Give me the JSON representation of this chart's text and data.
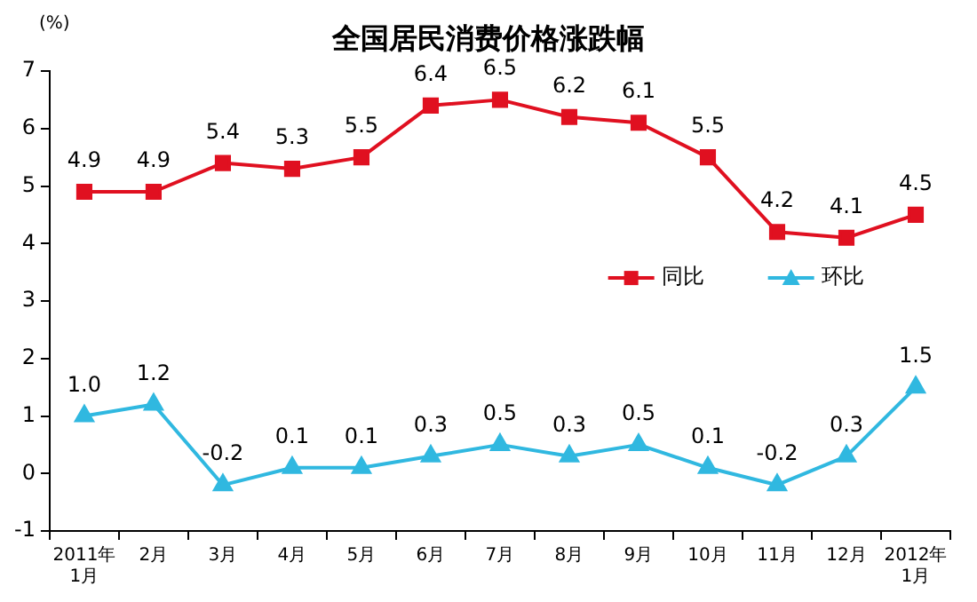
{
  "chart_data": {
    "type": "line",
    "title": "全国居民消费价格涨跌幅",
    "ylabel": "(%)",
    "categories": [
      "2011年\n1月",
      "2月",
      "3月",
      "4月",
      "5月",
      "6月",
      "7月",
      "8月",
      "9月",
      "10月",
      "11月",
      "12月",
      "2012年\n1月"
    ],
    "series": [
      {
        "name": "同比",
        "color": "#e01020",
        "marker": "square",
        "values": [
          4.9,
          4.9,
          5.4,
          5.3,
          5.5,
          6.4,
          6.5,
          6.2,
          6.1,
          5.5,
          4.2,
          4.1,
          4.5
        ],
        "value_labels": [
          "4.9",
          "4.9",
          "5.4",
          "5.3",
          "5.5",
          "6.4",
          "6.5",
          "6.2",
          "6.1",
          "5.5",
          "4.2",
          "4.1",
          "4.5"
        ]
      },
      {
        "name": "环比",
        "color": "#30b8e0",
        "marker": "triangle",
        "values": [
          1.0,
          1.2,
          -0.2,
          0.1,
          0.1,
          0.3,
          0.5,
          0.3,
          0.5,
          0.1,
          -0.2,
          0.3,
          1.5
        ],
        "value_labels": [
          "1.0",
          "1.2",
          "-0.2",
          "0.1",
          "0.1",
          "0.3",
          "0.5",
          "0.3",
          "0.5",
          "0.1",
          "-0.2",
          "0.3",
          "1.5"
        ]
      }
    ],
    "ylim": [
      -1,
      7
    ],
    "yticks": [
      -1,
      0,
      1,
      2,
      3,
      4,
      5,
      6,
      7
    ],
    "grid": false,
    "legend": "right"
  }
}
